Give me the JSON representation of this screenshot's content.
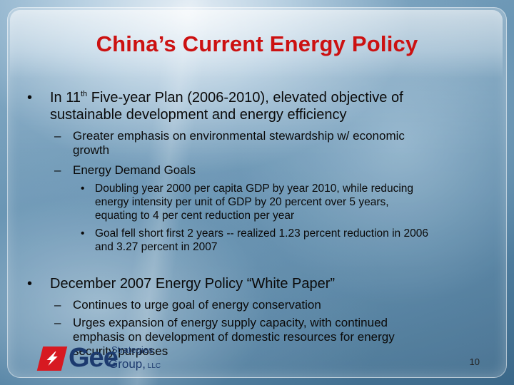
{
  "slide": {
    "title": "China’s Current Energy Policy",
    "page_number": "10",
    "bullets": [
      {
        "lines": [
          {
            "pre": "In 11",
            "sup": "th",
            "post": " Five-year Plan (2006-2010), elevated objective of"
          },
          {
            "text": "sustainable development and energy efficiency"
          }
        ]
      },
      {
        "lines": [
          {
            "text": "December 2007 Energy Policy “White Paper”"
          }
        ]
      }
    ],
    "sub_bullets": [
      {
        "lines": [
          "Greater emphasis on environmental stewardship w/ economic",
          "growth"
        ]
      },
      {
        "lines": [
          "Energy Demand Goals"
        ]
      },
      {
        "lines": [
          "Continues to urge goal of energy conservation"
        ]
      },
      {
        "lines": [
          "Urges expansion of energy supply capacity, with continued",
          "emphasis on development of domestic resources for energy",
          "security purposes"
        ]
      }
    ],
    "sub_sub_bullets": [
      {
        "lines": [
          "Doubling year 2000 per capita GDP by year 2010, while reducing",
          "energy intensity per unit of GDP by 20 percent over 5 years,",
          "equating to 4 per cent reduction per year"
        ]
      },
      {
        "lines": [
          "Goal fell short first 2 years -- realized 1.23 percent reduction in 2006",
          "and 3.27 percent in 2007"
        ]
      }
    ]
  },
  "logo": {
    "name": "Gee",
    "strategies": "Strategies",
    "group": "Group,",
    "llc": " LLC",
    "mark_icon": "lightning-bolt-icon",
    "mark_color": "#d71921",
    "text_color": "#1c3a6e"
  },
  "colors": {
    "title": "#cc1111",
    "body_text": "#0a0a0a"
  }
}
